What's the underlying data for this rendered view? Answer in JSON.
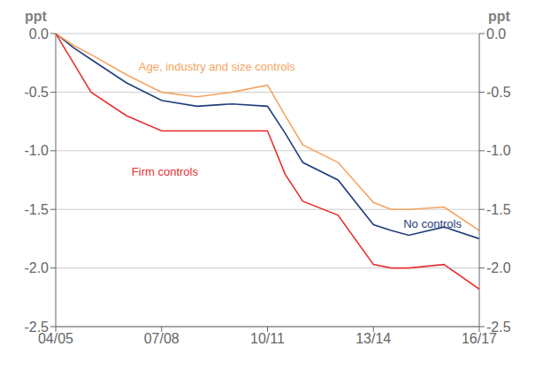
{
  "chart_data": {
    "type": "line",
    "ylabel": "ppt",
    "y2label": "ppt",
    "x": [
      0,
      0.5,
      1,
      2,
      3,
      4,
      5,
      6,
      6.5,
      7,
      8,
      9,
      9.5,
      10,
      11,
      12
    ],
    "series": [
      {
        "color": "#1f3d7a",
        "values": [
          0.0,
          -0.12,
          -0.22,
          -0.42,
          -0.57,
          -0.62,
          -0.6,
          -0.62,
          -0.85,
          -1.1,
          -1.25,
          -1.63,
          -1.68,
          -1.72,
          -1.65,
          -1.75
        ]
      },
      {
        "color": "#f4a460",
        "values": [
          0.0,
          -0.1,
          -0.18,
          -0.35,
          -0.5,
          -0.54,
          -0.5,
          -0.44,
          -0.7,
          -0.95,
          -1.1,
          -1.44,
          -1.5,
          -1.5,
          -1.48,
          -1.68
        ]
      },
      {
        "color": "#e83030",
        "values": [
          0.0,
          -0.25,
          -0.5,
          -0.7,
          -0.83,
          -0.83,
          -0.83,
          -0.83,
          -1.2,
          -1.43,
          -1.55,
          -1.97,
          -2.0,
          -2.0,
          -1.97,
          -2.18
        ]
      }
    ],
    "xlim": [
      0,
      12
    ],
    "xticks": [
      {
        "value": 0,
        "label": "04/05"
      },
      {
        "value": 3,
        "label": "07/08"
      },
      {
        "value": 6,
        "label": "10/11"
      },
      {
        "value": 9,
        "label": "13/14"
      },
      {
        "value": 12,
        "label": "16/17"
      }
    ],
    "ylim": [
      -2.5,
      0.0
    ],
    "yticks": [
      {
        "value": 0.0,
        "label": "0.0"
      },
      -0.5,
      {
        "value": -1.0,
        "label": "-1.0"
      },
      -1.5,
      {
        "value": -2.0,
        "label": "-2.0"
      },
      -2.5
    ],
    "y2lim": [
      -2.5,
      0.0
    ],
    "y2ticks": [
      {
        "value": 0.0,
        "label": "0.0"
      },
      -0.5,
      {
        "value": -1.0,
        "label": "-1.0"
      },
      -1.5,
      {
        "value": -2.0,
        "label": "-2.0"
      },
      -2.5
    ],
    "grid": "y",
    "annotations": [
      {
        "text": "Age, industry and size controls",
        "x": 2.2,
        "y": -0.28,
        "color": "#f4a460"
      },
      {
        "text": "Firm controls",
        "x": 2.0,
        "y": -1.18,
        "color": "#e83030"
      },
      {
        "text": "No controls",
        "x": 9.7,
        "y": -1.62,
        "color": "#1f3d7a"
      }
    ]
  }
}
